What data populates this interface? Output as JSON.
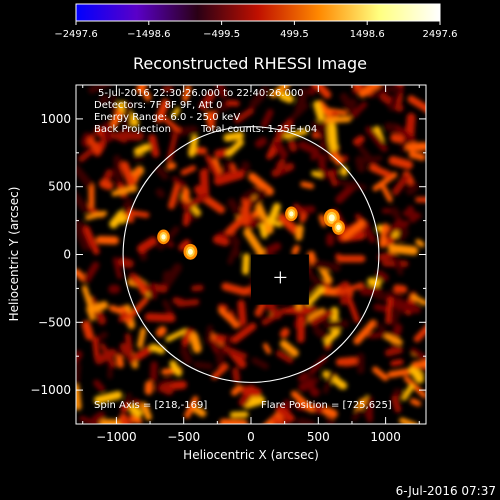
{
  "chart_data": {
    "type": "heatmap",
    "title": "Reconstructed RHESSI Image",
    "xlabel": "Heliocentric X (arcsec)",
    "ylabel": "Heliocentric Y (arcsec)",
    "xlim": [
      -1300,
      1300
    ],
    "ylim": [
      -1250,
      1250
    ],
    "x_ticks": [
      -1000,
      -500,
      0,
      500,
      1000
    ],
    "y_ticks": [
      -1000,
      -500,
      0,
      500,
      1000
    ],
    "x_tick_labels": [
      "−1000",
      "−500",
      "0",
      "500",
      "1000"
    ],
    "y_tick_labels": [
      "−1000",
      "−500",
      "0",
      "500",
      "1000"
    ],
    "colorbar": {
      "min": -2497.6,
      "max": 2497.6,
      "tick_labels": [
        "−2497.6",
        "−1498.6",
        "−499.5",
        "499.5",
        "1498.6",
        "2497.6"
      ],
      "colors": [
        "#0000ff",
        "#5a00c8",
        "#2a0015",
        "#c01000",
        "#ff8800",
        "#ffff80",
        "#ffffff"
      ]
    },
    "annotations": {
      "time_range": "5-Jul-2016 22:30:26.000 to 22:40:26.000",
      "detectors": "Detectors: 7F 8F 9F, Att 0",
      "energy_range": "Energy Range: 6.0 - 25.0 keV",
      "method": "Back Projection",
      "total_counts": "Total counts: 1.25E+04",
      "spin_axis": "Spin Axis = [218,-169]",
      "flare_position": "Flare Position = [725,625]"
    },
    "solar_limb": {
      "center": [
        0,
        0
      ],
      "radius_arcsec": 950
    },
    "spin_axis_marker": [
      218,
      -169
    ],
    "bright_sources": [
      {
        "x": 600,
        "y": 270,
        "intensity": 2497.6
      },
      {
        "x": -450,
        "y": 20,
        "intensity": 1600
      },
      {
        "x": 650,
        "y": 200,
        "intensity": 1200
      },
      {
        "x": -650,
        "y": 130,
        "intensity": 1100
      },
      {
        "x": 300,
        "y": 300,
        "intensity": 1050
      }
    ]
  },
  "footer": {
    "timestamp": "6-Jul-2016 07:37"
  }
}
